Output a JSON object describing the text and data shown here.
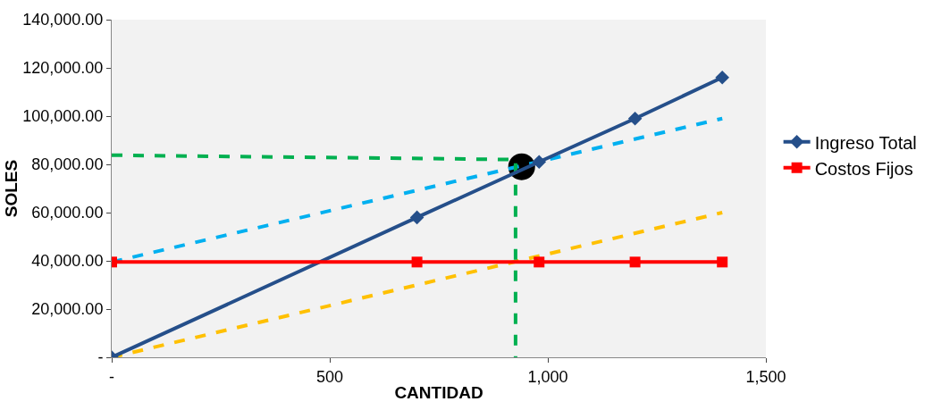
{
  "chart_data": {
    "type": "line",
    "xlabel": "CANTIDAD",
    "ylabel": "SOLES",
    "xlim": [
      0,
      1500
    ],
    "ylim": [
      0,
      140000
    ],
    "xticks": [
      {
        "value": 0,
        "label": "-"
      },
      500,
      {
        "value": 1000,
        "label": "1,000"
      },
      {
        "value": 1500,
        "label": "1,500"
      }
    ],
    "yticks": [
      {
        "value": 0,
        "label": "-"
      },
      {
        "value": 20000,
        "label": "20,000.00"
      },
      {
        "value": 40000,
        "label": "40,000.00"
      },
      {
        "value": 60000,
        "label": "60,000.00"
      },
      {
        "value": 80000,
        "label": "80,000.00"
      },
      {
        "value": 100000,
        "label": "100,000.00"
      },
      {
        "value": 120000,
        "label": "120,000.00"
      },
      {
        "value": 140000,
        "label": "140,000.00"
      }
    ],
    "grid": false,
    "legend": "right",
    "series": [
      {
        "type": "scatter",
        "marker": "circle",
        "color": "#000000",
        "x": [
          940
        ],
        "values": [
          79000
        ]
      },
      {
        "line_style": "dashed",
        "color": "#00b0f0",
        "x": [
          0,
          1400
        ],
        "values": [
          39500,
          99000
        ]
      },
      {
        "line_style": "dashed",
        "color": "#ffc000",
        "x": [
          0,
          1400
        ],
        "values": [
          0,
          60000
        ]
      },
      {
        "line_style": "dashed",
        "color": "#00b050",
        "x": [
          0,
          926,
          926
        ],
        "values": [
          83800,
          82000,
          0
        ]
      },
      {
        "marker": "diamond",
        "name": "Ingreso Total",
        "color": "#254f8a",
        "x": [
          0,
          700,
          980,
          1200,
          1400
        ],
        "values": [
          0,
          58000,
          81000,
          99000,
          116000
        ]
      },
      {
        "marker": "square",
        "name": "Costos Fijos",
        "color": "#ff0000",
        "x": [
          0,
          700,
          980,
          1200,
          1400
        ],
        "values": [
          39500,
          39500,
          39500,
          39500,
          39500
        ]
      }
    ]
  }
}
